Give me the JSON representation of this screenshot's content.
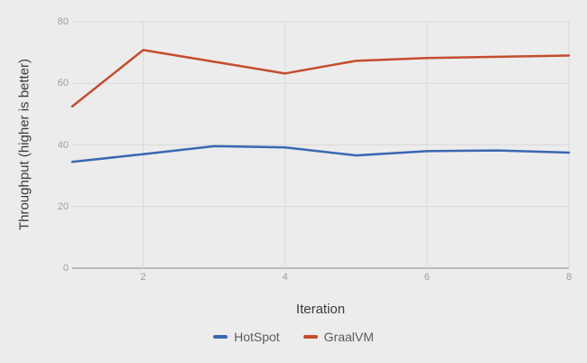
{
  "page": {
    "background": "#ececec"
  },
  "colors": {
    "grid": "#d9d9d9",
    "axis_baseline": "#8a8a8a",
    "tick_label": "#9e9e9e",
    "axis_title_text": "#3a3a3a",
    "legend_text": "#5c5c5c",
    "hotspot_blue": "#3b67b1",
    "graalvm_red": "#c44d2e"
  },
  "chart_data": {
    "type": "line",
    "title": "",
    "xlabel": "Iteration",
    "ylabel": "Throughput (higher is better)",
    "x": [
      1,
      2,
      3,
      4,
      5,
      6,
      7,
      8
    ],
    "x_ticks": [
      2,
      4,
      6,
      8
    ],
    "y_ticks": [
      0,
      20,
      40,
      60,
      80
    ],
    "xlim": [
      1,
      8
    ],
    "ylim": [
      0,
      80
    ],
    "grid": true,
    "legend_position": "bottom",
    "series": [
      {
        "name": "HotSpot",
        "color": "#3b67b1",
        "values": [
          34.5,
          37.0,
          39.6,
          39.2,
          36.6,
          38.0,
          38.2,
          37.5
        ]
      },
      {
        "name": "GraalVM",
        "color": "#c44d2e",
        "values": [
          52.5,
          70.8,
          67.0,
          63.2,
          67.3,
          68.2,
          68.6,
          69.0
        ]
      }
    ]
  }
}
